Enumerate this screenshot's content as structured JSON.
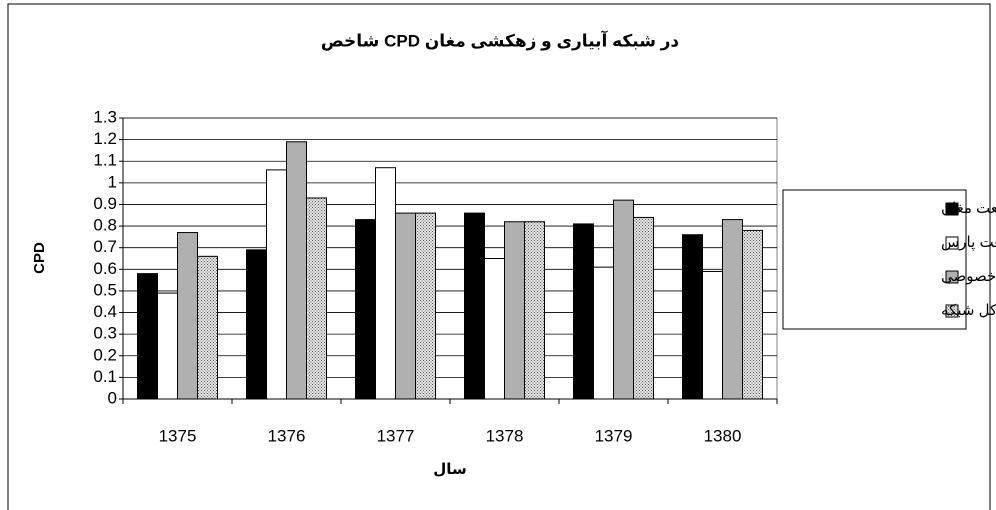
{
  "chart_data": {
    "type": "bar",
    "title": "شاخص CPD در  شبکه آبیاری و زهکشی مغان",
    "y_label": "CPD",
    "x_label": "سال",
    "categories": [
      "1375",
      "1376",
      "1377",
      "1378",
      "1379",
      "1380"
    ],
    "series": [
      {
        "name": "کشت و صنعت مغان",
        "color": "#000000",
        "values": [
          0.58,
          0.69,
          0.83,
          0.86,
          0.81,
          0.76
        ]
      },
      {
        "name": "کشت و صنعت پارس",
        "color": "#ffffff",
        "values": [
          0.49,
          1.06,
          1.07,
          0.65,
          0.61,
          0.59
        ]
      },
      {
        "name": "بخش خصوصی",
        "color": "#b0b0b0",
        "values": [
          0.77,
          1.19,
          0.86,
          0.82,
          0.92,
          0.83
        ]
      },
      {
        "name": "کل شبکه",
        "color": "#c8c8c8",
        "pattern": "dots",
        "values": [
          0.66,
          0.93,
          0.86,
          0.82,
          0.84,
          0.78
        ]
      }
    ],
    "ylim": [
      0,
      1.3
    ],
    "yticks": [
      0,
      0.1,
      0.2,
      0.3,
      0.4,
      0.5,
      0.6,
      0.7,
      0.8,
      0.9,
      1,
      1.1,
      1.2,
      1.3
    ],
    "grid": true,
    "legend": "right"
  }
}
